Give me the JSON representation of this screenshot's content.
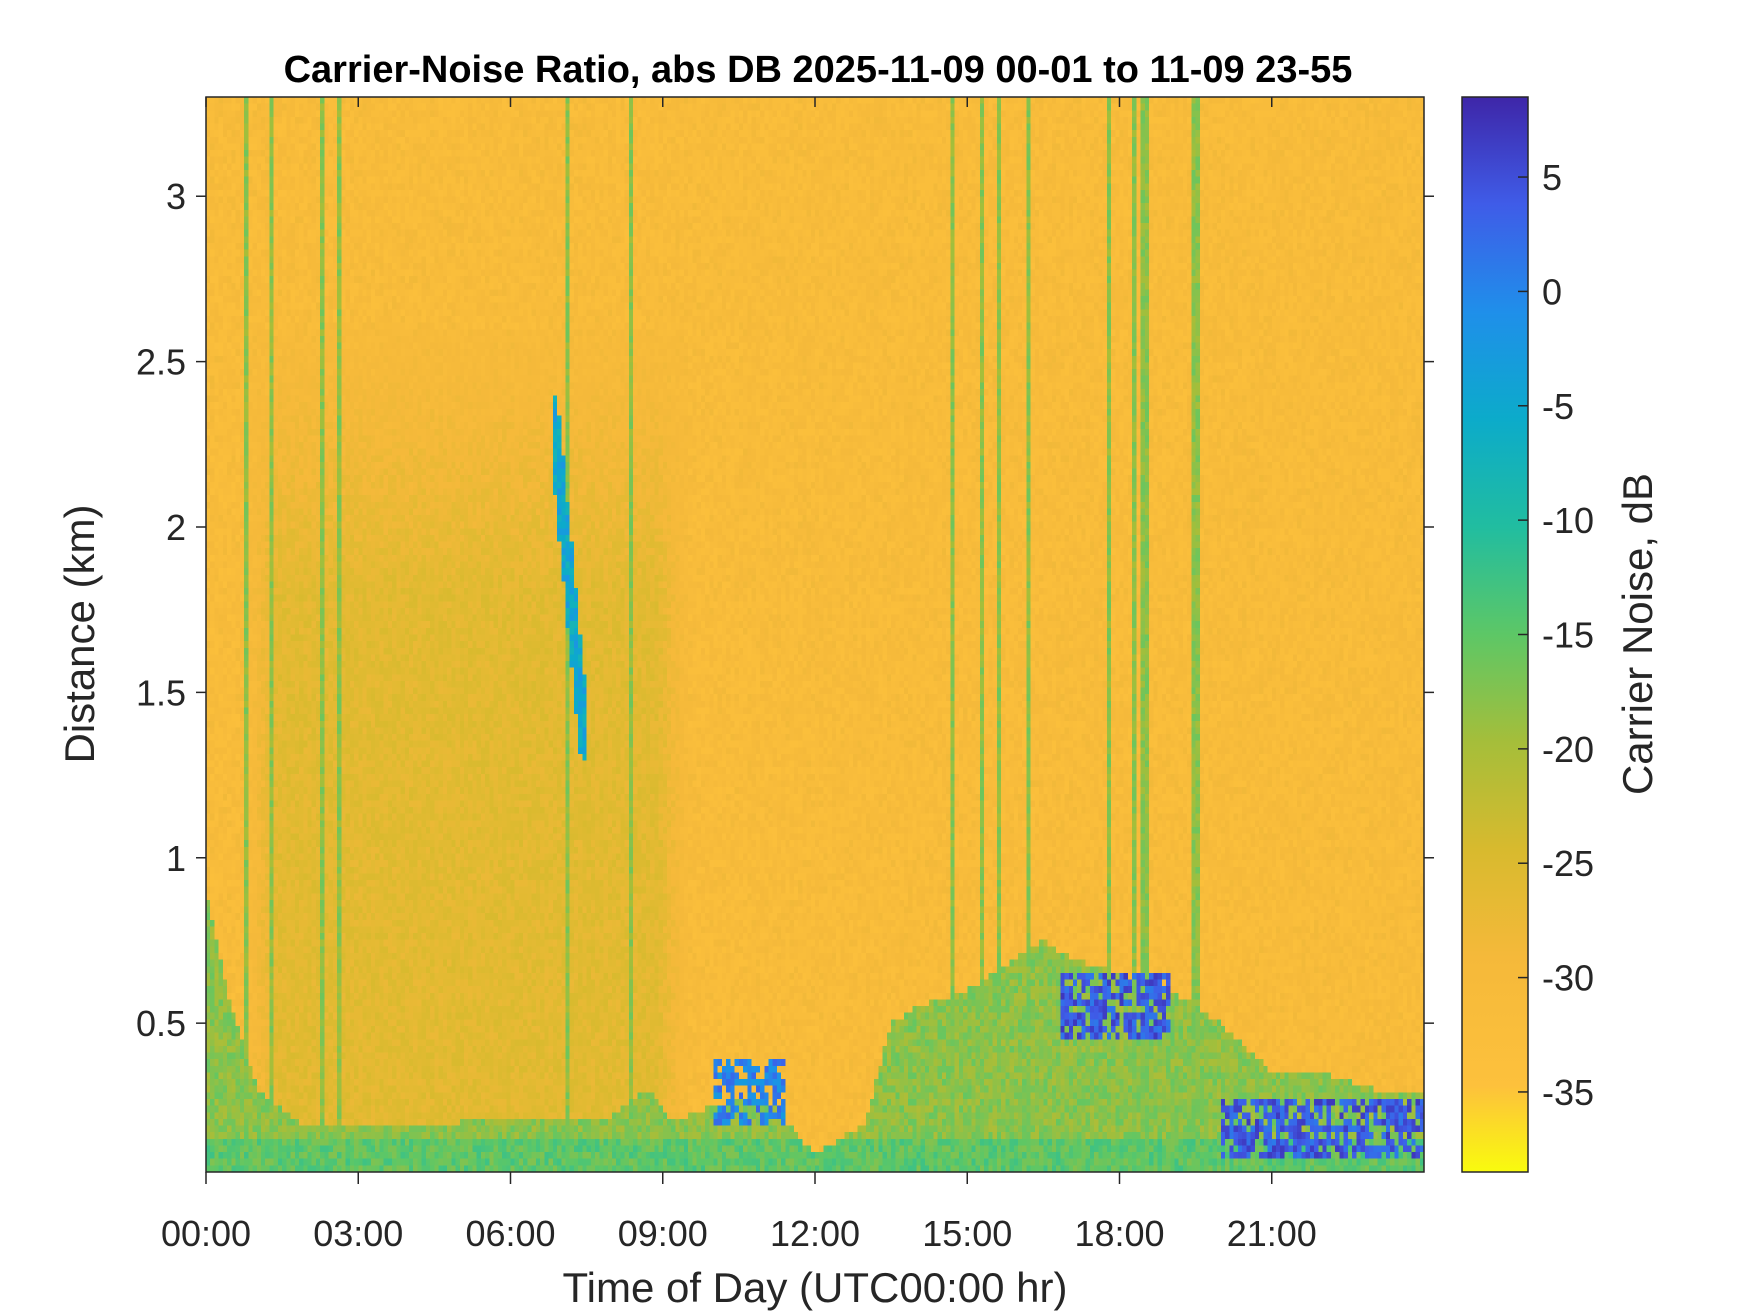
{
  "chart_data": {
    "type": "heatmap",
    "title": "Carrier-Noise Ratio, abs DB 2025-11-09 00-01 to 11-09 23-55",
    "xlabel": "Time of Day (UTC00:00 hr)",
    "ylabel": "Distance (km)",
    "colorbar_label": "Carrier Noise, dB",
    "x_ticks": [
      "00:00",
      "03:00",
      "06:00",
      "09:00",
      "12:00",
      "15:00",
      "18:00",
      "21:00"
    ],
    "x_tick_values": [
      0,
      3,
      6,
      9,
      12,
      15,
      18,
      21
    ],
    "xlim": [
      0,
      24
    ],
    "y_ticks": [
      "0.5",
      "1",
      "1.5",
      "2",
      "2.5",
      "3"
    ],
    "y_tick_values": [
      0.5,
      1,
      1.5,
      2,
      2.5,
      3
    ],
    "ylim": [
      0.05,
      3.3
    ],
    "colorbar_ticks": [
      "5",
      "0",
      "-5",
      "-10",
      "-15",
      "-20",
      "-25",
      "-30",
      "-35"
    ],
    "colorbar_tick_values": [
      5,
      0,
      -5,
      -10,
      -15,
      -20,
      -25,
      -30,
      -35
    ],
    "clim": [
      -38.5,
      8.5
    ],
    "colormap": "parula (reversed: yellow = low, dark blue = high)",
    "background_level_db": -31,
    "features": [
      {
        "kind": "boundary_layer",
        "description": "green/cyan enhanced-signal band near the ground, top height (km) varying with time",
        "x": [
          0,
          0.5,
          1,
          2,
          3,
          4,
          5,
          6,
          7,
          8,
          8.7,
          9.2,
          10,
          11,
          12,
          13,
          13.5,
          14,
          15,
          16,
          16.5,
          17,
          18,
          19,
          20,
          21,
          22,
          23,
          24
        ],
        "top": [
          0.9,
          0.55,
          0.3,
          0.18,
          0.2,
          0.2,
          0.2,
          0.22,
          0.2,
          0.22,
          0.3,
          0.2,
          0.25,
          0.28,
          0.1,
          0.2,
          0.5,
          0.55,
          0.6,
          0.7,
          0.75,
          0.7,
          0.65,
          0.6,
          0.5,
          0.35,
          0.35,
          0.3,
          0.3
        ],
        "value_db": -18
      },
      {
        "kind": "residual_layer",
        "description": "weak olive/green region aloft",
        "x0": 0.8,
        "x1": 9.5,
        "y0": 0.05,
        "y1": 2.6,
        "value_db": -26
      },
      {
        "kind": "strong_echo",
        "description": "dark-blue aerosol/cloud patch near ground",
        "x0": 10.0,
        "x1": 11.4,
        "y0": 0.2,
        "y1": 0.4,
        "value_db": 0
      },
      {
        "kind": "strong_echo",
        "description": "dark-blue layer top",
        "x0": 16.8,
        "x1": 19.0,
        "y0": 0.45,
        "y1": 0.65,
        "value_db": 4
      },
      {
        "kind": "strong_echo",
        "description": "dark-blue layer top",
        "x0": 20.0,
        "x1": 24.0,
        "y0": 0.1,
        "y1": 0.28,
        "value_db": 4
      },
      {
        "kind": "vertical_streak",
        "x": [
          0.8,
          1.3,
          2.3,
          2.6,
          7.1,
          8.4,
          14.7,
          15.3,
          15.6,
          16.2,
          17.8,
          18.3,
          18.5,
          19.5
        ],
        "value_db": -18
      },
      {
        "kind": "precipitation_trail",
        "description": "falling blue streaks",
        "x0": 6.8,
        "x1": 7.5,
        "y0": 1.3,
        "y1": 2.4,
        "value_db": -5
      }
    ]
  }
}
